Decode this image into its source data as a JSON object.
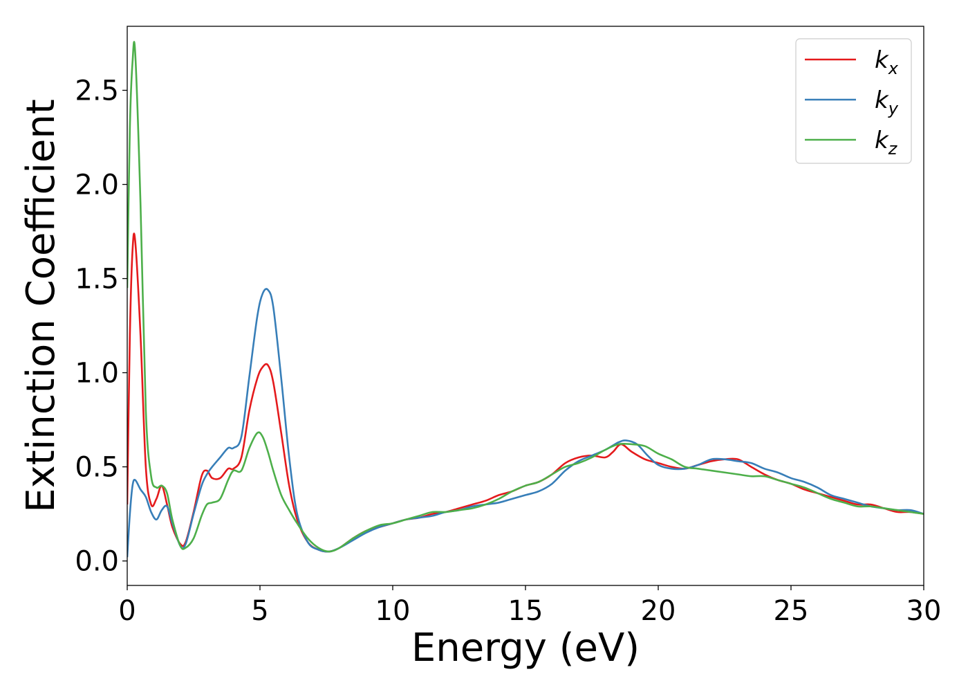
{
  "chart_data": {
    "type": "line",
    "xlabel": "Energy (eV)",
    "ylabel": "Extinction Coefficient",
    "xlim": [
      0,
      30
    ],
    "ylim": [
      -0.13,
      2.84
    ],
    "xticks": [
      0,
      5,
      10,
      15,
      20,
      25,
      30
    ],
    "xtick_labels": [
      "0",
      "5",
      "10",
      "15",
      "20",
      "25",
      "30"
    ],
    "yticks": [
      0.0,
      0.5,
      1.0,
      1.5,
      2.0,
      2.5
    ],
    "ytick_labels": [
      "0.0",
      "0.5",
      "1.0",
      "1.5",
      "2.0",
      "2.5"
    ],
    "grid": false,
    "legend_position": "top-right",
    "series": [
      {
        "name": "k",
        "sub": "x",
        "color": "#e41a1c",
        "x": [
          0,
          0.1,
          0.2,
          0.3,
          0.5,
          0.7,
          0.9,
          1.1,
          1.3,
          1.5,
          1.7,
          2.0,
          2.2,
          2.5,
          2.8,
          3.0,
          3.2,
          3.5,
          3.8,
          4.0,
          4.3,
          4.6,
          4.9,
          5.1,
          5.3,
          5.5,
          5.8,
          6.1,
          6.4,
          6.8,
          7.2,
          7.6,
          8.0,
          8.5,
          9.0,
          9.5,
          10,
          10.5,
          11,
          11.5,
          12,
          12.5,
          13,
          13.5,
          14,
          14.5,
          15,
          15.5,
          16,
          16.5,
          17,
          17.5,
          18,
          18.3,
          18.6,
          19,
          19.5,
          20,
          20.5,
          21,
          21.5,
          22,
          22.5,
          23,
          23.5,
          24,
          24.5,
          25,
          25.5,
          26,
          26.5,
          27,
          27.5,
          28,
          28.5,
          29,
          29.5,
          30
        ],
        "y": [
          0.3,
          1.2,
          1.65,
          1.7,
          1.2,
          0.5,
          0.3,
          0.33,
          0.4,
          0.3,
          0.18,
          0.09,
          0.1,
          0.26,
          0.45,
          0.48,
          0.44,
          0.44,
          0.49,
          0.49,
          0.55,
          0.8,
          0.97,
          1.03,
          1.04,
          0.95,
          0.68,
          0.4,
          0.22,
          0.1,
          0.06,
          0.05,
          0.07,
          0.12,
          0.16,
          0.18,
          0.2,
          0.22,
          0.23,
          0.25,
          0.26,
          0.28,
          0.3,
          0.32,
          0.35,
          0.37,
          0.4,
          0.42,
          0.46,
          0.52,
          0.55,
          0.56,
          0.55,
          0.58,
          0.62,
          0.58,
          0.54,
          0.52,
          0.5,
          0.49,
          0.51,
          0.53,
          0.54,
          0.54,
          0.5,
          0.46,
          0.43,
          0.41,
          0.38,
          0.36,
          0.34,
          0.32,
          0.3,
          0.3,
          0.28,
          0.26,
          0.26,
          0.25
        ]
      },
      {
        "name": "k",
        "sub": "y",
        "color": "#377eb8",
        "x": [
          0,
          0.1,
          0.2,
          0.3,
          0.5,
          0.7,
          0.9,
          1.1,
          1.3,
          1.5,
          1.7,
          2.0,
          2.2,
          2.5,
          2.8,
          3.0,
          3.2,
          3.5,
          3.8,
          4.0,
          4.3,
          4.6,
          4.9,
          5.1,
          5.3,
          5.5,
          5.8,
          6.1,
          6.4,
          6.8,
          7.2,
          7.6,
          8.0,
          8.5,
          9.0,
          9.5,
          10,
          10.5,
          11,
          11.5,
          12,
          12.5,
          13,
          13.5,
          14,
          14.5,
          15,
          15.5,
          16,
          16.5,
          17,
          17.5,
          18,
          18.5,
          18.8,
          19.2,
          19.6,
          20,
          20.5,
          21,
          21.5,
          22,
          22.5,
          23,
          23.5,
          24,
          24.5,
          25,
          25.5,
          26,
          26.5,
          27,
          27.5,
          28,
          28.5,
          29,
          29.5,
          30
        ],
        "y": [
          0.02,
          0.25,
          0.4,
          0.43,
          0.38,
          0.34,
          0.26,
          0.22,
          0.27,
          0.29,
          0.2,
          0.08,
          0.09,
          0.25,
          0.4,
          0.46,
          0.5,
          0.55,
          0.6,
          0.6,
          0.66,
          0.98,
          1.3,
          1.42,
          1.44,
          1.35,
          0.97,
          0.55,
          0.25,
          0.1,
          0.06,
          0.05,
          0.07,
          0.11,
          0.15,
          0.18,
          0.2,
          0.22,
          0.23,
          0.24,
          0.26,
          0.27,
          0.29,
          0.3,
          0.31,
          0.33,
          0.35,
          0.37,
          0.41,
          0.48,
          0.53,
          0.56,
          0.59,
          0.63,
          0.64,
          0.62,
          0.56,
          0.51,
          0.49,
          0.49,
          0.51,
          0.54,
          0.54,
          0.53,
          0.52,
          0.49,
          0.47,
          0.44,
          0.42,
          0.39,
          0.35,
          0.33,
          0.31,
          0.29,
          0.28,
          0.27,
          0.27,
          0.25
        ]
      },
      {
        "name": "k",
        "sub": "z",
        "color": "#4daf4a",
        "x": [
          0,
          0.1,
          0.2,
          0.3,
          0.5,
          0.7,
          0.9,
          1.1,
          1.3,
          1.5,
          1.7,
          2.0,
          2.2,
          2.5,
          2.8,
          3.0,
          3.2,
          3.5,
          3.8,
          4.0,
          4.3,
          4.6,
          4.9,
          5.1,
          5.3,
          5.5,
          5.8,
          6.1,
          6.4,
          6.8,
          7.2,
          7.6,
          8.0,
          8.5,
          9.0,
          9.5,
          10,
          10.5,
          11,
          11.5,
          12,
          12.5,
          13,
          13.5,
          14,
          14.5,
          15,
          15.5,
          16,
          16.5,
          17,
          17.5,
          18,
          18.5,
          19,
          19.5,
          20,
          20.5,
          21,
          21.5,
          22,
          22.5,
          23,
          23.5,
          24,
          24.5,
          25,
          25.5,
          26,
          26.5,
          27,
          27.5,
          28,
          28.5,
          29,
          29.5,
          30
        ],
        "y": [
          1.45,
          2.3,
          2.65,
          2.7,
          1.9,
          0.8,
          0.45,
          0.39,
          0.4,
          0.36,
          0.22,
          0.08,
          0.07,
          0.12,
          0.24,
          0.3,
          0.31,
          0.33,
          0.43,
          0.48,
          0.48,
          0.6,
          0.68,
          0.66,
          0.58,
          0.48,
          0.35,
          0.27,
          0.2,
          0.12,
          0.07,
          0.05,
          0.07,
          0.12,
          0.16,
          0.19,
          0.2,
          0.22,
          0.24,
          0.26,
          0.26,
          0.27,
          0.28,
          0.3,
          0.33,
          0.37,
          0.4,
          0.42,
          0.46,
          0.5,
          0.52,
          0.55,
          0.59,
          0.62,
          0.62,
          0.61,
          0.57,
          0.54,
          0.5,
          0.49,
          0.48,
          0.47,
          0.46,
          0.45,
          0.45,
          0.43,
          0.41,
          0.39,
          0.36,
          0.33,
          0.31,
          0.29,
          0.29,
          0.28,
          0.27,
          0.26,
          0.25
        ]
      }
    ]
  }
}
